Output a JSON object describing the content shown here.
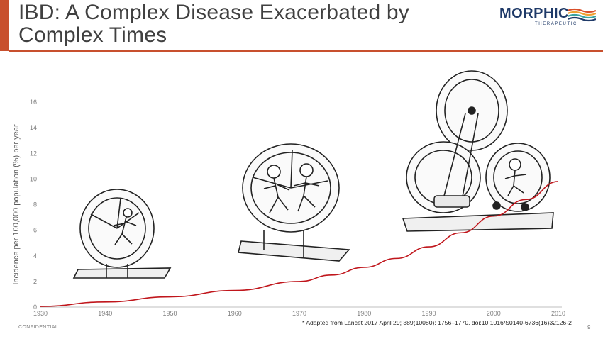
{
  "slide": {
    "title": "IBD: A Complex Disease Exacerbated by Complex Times",
    "footer_left": "CONFIDENTIAL",
    "page_number": "9",
    "source_note": "* Adapted from Lancet 2017 April 29; 389(10080): 1756–1770. doi:10.1016/S0140-6736(16)32126-2",
    "accent_color": "#c8502e"
  },
  "logo": {
    "word": "MORPHIC",
    "sub": "THERAPEUTIC",
    "color": "#1f3a68"
  },
  "illustrations": [
    {
      "name": "single-hamster-wheel",
      "description_icon": "hamster-wheel-icon"
    },
    {
      "name": "double-runner-hamster-wheel",
      "description_icon": "hamster-wheel-icon"
    },
    {
      "name": "triple-hamster-wheel-machine",
      "description_icon": "hamster-wheel-icon"
    }
  ],
  "chart_data": {
    "type": "line",
    "title": "",
    "xlabel": "",
    "ylabel": "Incidence per 100,000 population (%) per year",
    "xlim": [
      1930,
      2010
    ],
    "ylim": [
      0,
      16
    ],
    "xticks": [
      1930,
      1940,
      1950,
      1960,
      1970,
      1980,
      1990,
      2000,
      2010
    ],
    "yticks": [
      0,
      2,
      4,
      6,
      8,
      10,
      12,
      14,
      16
    ],
    "grid": false,
    "legend": "none",
    "series": [
      {
        "color": "#c0161c",
        "x": [
          1930,
          1940,
          1950,
          1960,
          1970,
          1975,
          1980,
          1985,
          1990,
          1995,
          2000,
          2005,
          2010
        ],
        "y": [
          0.05,
          0.4,
          0.8,
          1.3,
          2.0,
          2.5,
          3.1,
          3.8,
          4.7,
          5.8,
          7.1,
          8.4,
          9.8
        ]
      }
    ]
  }
}
